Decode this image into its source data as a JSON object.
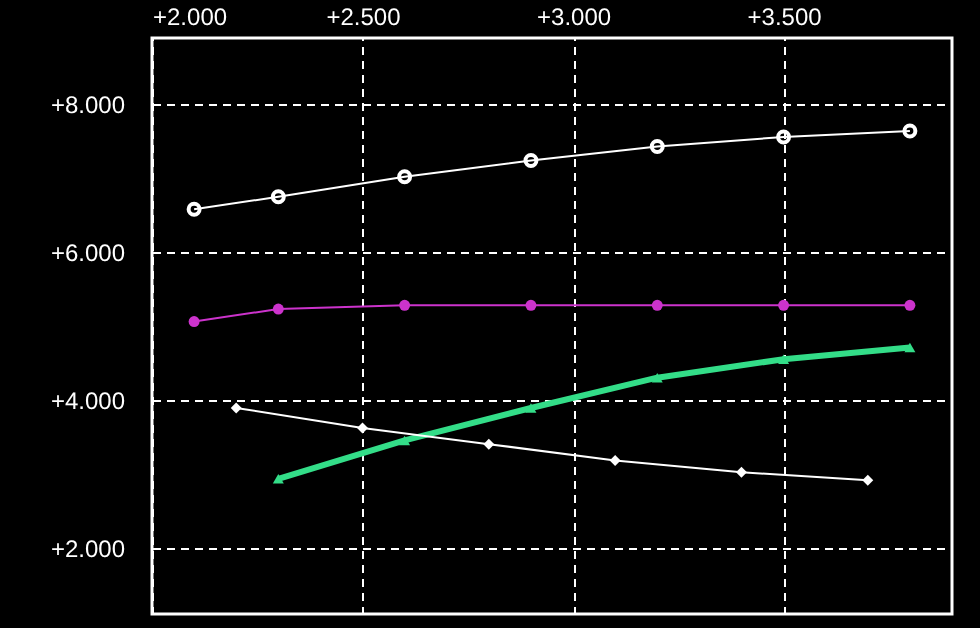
{
  "chart_data": {
    "type": "line",
    "xlim": [
      2.0,
      3.9
    ],
    "ylim": [
      1.1,
      8.9
    ],
    "xticks": [
      {
        "value": 2,
        "label": "+2.000"
      },
      {
        "value": 2.5,
        "label": "+2.500"
      },
      {
        "value": 3,
        "label": "+3.000"
      },
      {
        "value": 3.5,
        "label": "+3.500"
      }
    ],
    "yticks": [
      {
        "value": 2,
        "label": "+2.000"
      },
      {
        "value": 4,
        "label": "+4.000"
      },
      {
        "value": 6,
        "label": "+6.000"
      },
      {
        "value": 8,
        "label": "+8.000"
      }
    ],
    "grid": true,
    "line_style": "solid",
    "series": [
      {
        "color": "#ffffff",
        "marker": "circle",
        "x": [
          2.1,
          2.3,
          2.6,
          2.9,
          3.2,
          3.5,
          3.8
        ],
        "values": [
          6.58,
          6.75,
          7.02,
          7.24,
          7.43,
          7.56,
          7.64
        ]
      },
      {
        "color": "#cc33cc",
        "marker": "circle",
        "x": [
          2.1,
          2.3,
          2.6,
          2.9,
          3.2,
          3.5,
          3.8
        ],
        "values": [
          5.06,
          5.23,
          5.28,
          5.28,
          5.28,
          5.28,
          5.28
        ]
      },
      {
        "color": "#33dd88",
        "marker": "triangle",
        "x": [
          2.3,
          2.6,
          2.9,
          3.2,
          3.5,
          3.8
        ],
        "values": [
          2.93,
          3.45,
          3.89,
          4.3,
          4.55,
          4.71
        ]
      },
      {
        "color": "#ffffff",
        "marker": "diamond",
        "x": [
          2.2,
          2.5,
          2.8,
          3.1,
          3.4,
          3.7
        ],
        "values": [
          3.89,
          3.62,
          3.4,
          3.18,
          3.02,
          2.91
        ]
      }
    ]
  }
}
